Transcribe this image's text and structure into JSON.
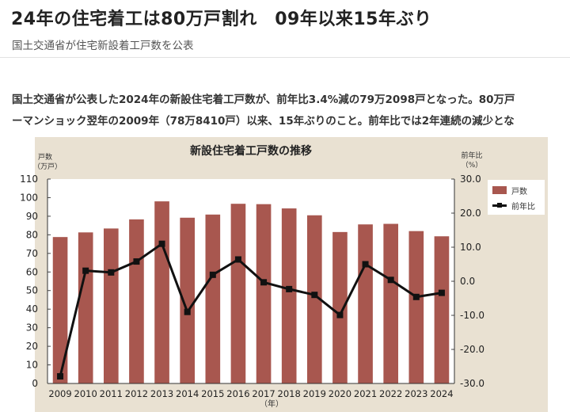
{
  "article": {
    "headline": "24年の住宅着工は80万戸割れ　09年以来15年ぶり",
    "subtitle": "国土交通省が住宅新設着工戸数を公表",
    "body_line1": "国土交通省が公表した2024年の新設住宅着工戸数が、前年比3.4%減の79万2098戸となった。80万戸",
    "body_line2": "ーマンショック翌年の2009年（78万8410戸）以来、15年ぶりのこと。前年比では2年連続の減少とな"
  },
  "chart_data": {
    "type": "bar",
    "title": "新設住宅着工戸数の推移",
    "categories": [
      "2009",
      "2010",
      "2011",
      "2012",
      "2013",
      "2014",
      "2015",
      "2016",
      "2017",
      "2018",
      "2019",
      "2020",
      "2021",
      "2022",
      "2023",
      "2024"
    ],
    "series": [
      {
        "name": "戸数",
        "type": "bar",
        "axis": "left",
        "values": [
          78.8,
          81.3,
          83.4,
          88.3,
          98.0,
          89.2,
          90.9,
          96.7,
          96.5,
          94.2,
          90.5,
          81.5,
          85.6,
          85.9,
          82.0,
          79.2
        ]
      },
      {
        "name": "前年比",
        "type": "line",
        "axis": "right",
        "values": [
          -27.9,
          3.1,
          2.6,
          5.8,
          11.0,
          -9.0,
          1.9,
          6.4,
          -0.3,
          -2.3,
          -4.0,
          -9.9,
          5.0,
          0.4,
          -4.6,
          -3.4
        ]
      }
    ],
    "left_axis": {
      "label_top": "戸数",
      "label_unit": "（万戸）",
      "ylim": [
        0,
        110
      ],
      "ticks": [
        "0",
        "10",
        "20",
        "30",
        "40",
        "50",
        "60",
        "70",
        "80",
        "90",
        "100",
        "110"
      ]
    },
    "right_axis": {
      "label_top": "前年比",
      "label_unit": "（%）",
      "ylim": [
        -30,
        30
      ],
      "ticks": [
        "-30.0",
        "-20.0",
        "-10.0",
        "0.0",
        "10.0",
        "20.0",
        "30.0"
      ]
    },
    "xlabel": "（年）",
    "legend_position": "top-right",
    "colors": {
      "bar": "#a8574f",
      "line": "#111111",
      "background": "#e9e1d2",
      "plot_bg": "#ffffff"
    }
  }
}
